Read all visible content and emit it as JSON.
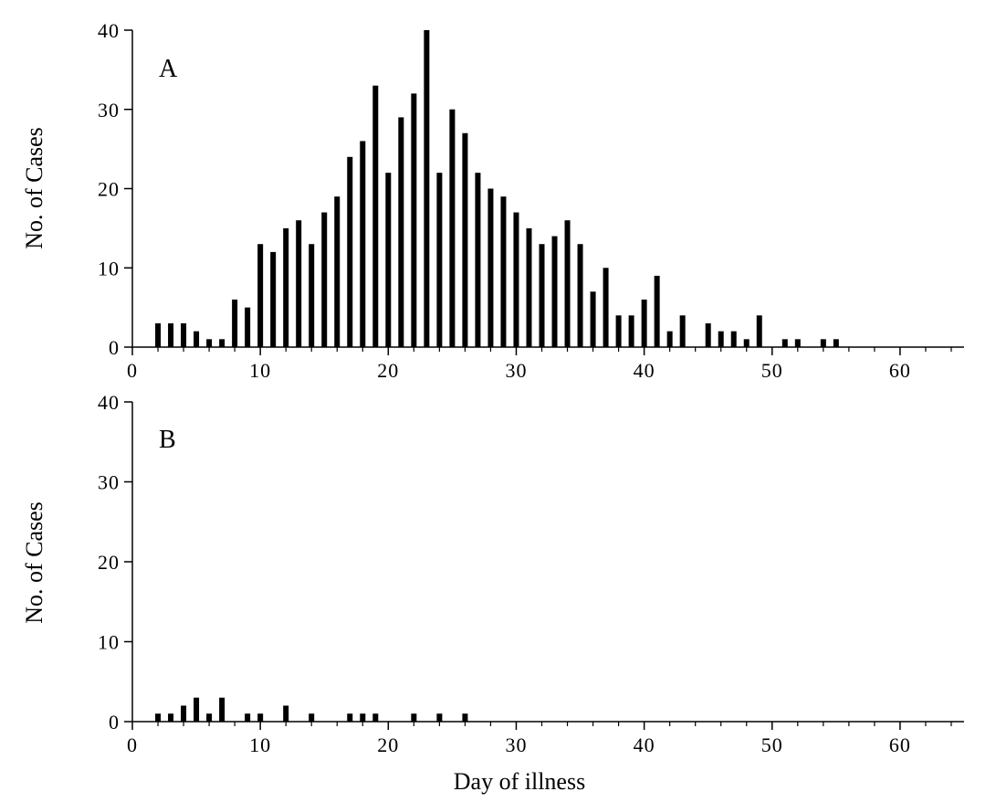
{
  "colors": {
    "bar": "#000000",
    "axis": "#000000",
    "background": "#ffffff"
  },
  "chart_data": [
    {
      "type": "bar",
      "panel_label": "A",
      "title": "",
      "xlabel": "",
      "ylabel": "No. of Cases",
      "xlim": [
        0,
        65
      ],
      "ylim": [
        0,
        40
      ],
      "xticks": [
        0,
        10,
        20,
        30,
        40,
        50,
        60
      ],
      "yticks": [
        0,
        10,
        20,
        30,
        40
      ],
      "grid": false,
      "x": [
        2,
        3,
        4,
        5,
        6,
        7,
        8,
        9,
        10,
        11,
        12,
        13,
        14,
        15,
        16,
        17,
        18,
        19,
        20,
        21,
        22,
        23,
        24,
        25,
        26,
        27,
        28,
        29,
        30,
        31,
        32,
        33,
        34,
        35,
        36,
        37,
        38,
        39,
        40,
        41,
        42,
        43,
        44,
        45,
        46,
        47,
        48,
        49,
        50,
        51,
        52,
        53,
        54,
        55
      ],
      "values": [
        3,
        3,
        3,
        2,
        1,
        1,
        6,
        5,
        13,
        12,
        15,
        16,
        13,
        17,
        19,
        24,
        26,
        33,
        22,
        29,
        32,
        40,
        22,
        30,
        27,
        22,
        20,
        19,
        17,
        15,
        13,
        14,
        16,
        13,
        7,
        10,
        4,
        4,
        6,
        9,
        2,
        4,
        0,
        3,
        2,
        2,
        1,
        4,
        0,
        1,
        1,
        0,
        1,
        1
      ]
    },
    {
      "type": "bar",
      "panel_label": "B",
      "title": "",
      "xlabel": "Day of illness",
      "ylabel": "No. of Cases",
      "xlim": [
        0,
        65
      ],
      "ylim": [
        0,
        40
      ],
      "xticks": [
        0,
        10,
        20,
        30,
        40,
        50,
        60
      ],
      "yticks": [
        0,
        10,
        20,
        30,
        40
      ],
      "grid": false,
      "x": [
        2,
        3,
        4,
        5,
        6,
        7,
        9,
        10,
        12,
        14,
        17,
        18,
        19,
        22,
        24,
        26
      ],
      "values": [
        1,
        1,
        2,
        3,
        1,
        3,
        1,
        1,
        2,
        1,
        1,
        1,
        1,
        1,
        1,
        1
      ]
    }
  ]
}
